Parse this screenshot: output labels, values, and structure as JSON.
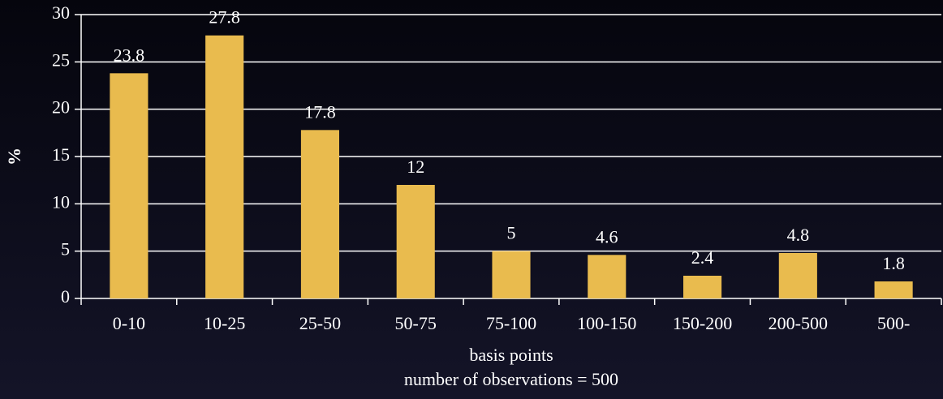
{
  "chart_data": {
    "type": "bar",
    "categories": [
      "0-10",
      "10-25",
      "25-50",
      "50-75",
      "75-100",
      "100-150",
      "150-200",
      "200-500",
      "500-"
    ],
    "values": [
      23.8,
      27.8,
      17.8,
      12,
      5,
      4.6,
      2.4,
      4.8,
      1.8
    ],
    "color": "#e9bb4e",
    "ylabel": "%",
    "xlabel": "basis points",
    "annotations": [
      "number of observations = 500"
    ],
    "ylim": [
      0,
      30
    ],
    "yticks": [
      0,
      5,
      10,
      15,
      20,
      25,
      30
    ],
    "grid": true
  }
}
